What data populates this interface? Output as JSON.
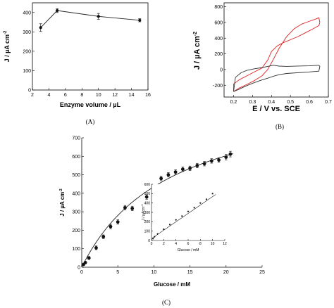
{
  "chart_data": [
    {
      "panel": "A",
      "type": "line",
      "panel_label": "(A)",
      "xlabel": "Enzyme volume / µL",
      "ylabel": "J / µA cm",
      "ylabel_sup": "-2",
      "xlim": [
        2,
        16
      ],
      "ylim": [
        0,
        450
      ],
      "xticks": [
        2,
        4,
        6,
        8,
        10,
        12,
        14,
        16
      ],
      "yticks": [
        0,
        100,
        200,
        300,
        400
      ],
      "x": [
        3,
        5,
        10,
        15
      ],
      "y": [
        322,
        410,
        380,
        360
      ],
      "err": [
        20,
        10,
        15,
        8
      ]
    },
    {
      "panel": "B",
      "type": "line",
      "panel_label": "(B)",
      "xlabel": "E / V vs. SCE",
      "ylabel": "J / µA cm",
      "ylabel_sup": "-2",
      "xlim": [
        0.15,
        0.7
      ],
      "ylim": [
        -350,
        850
      ],
      "xticks": [
        0.2,
        0.3,
        0.4,
        0.5,
        0.6,
        0.7
      ],
      "yticks": [
        -200,
        0,
        200,
        400,
        600,
        800
      ],
      "series": [
        {
          "color": "#e02020",
          "x": [
            0.2,
            0.23,
            0.27,
            0.31,
            0.35,
            0.38,
            0.41,
            0.44,
            0.48,
            0.52,
            0.56,
            0.6,
            0.63,
            0.65,
            0.655,
            0.65,
            0.62,
            0.58,
            0.54,
            0.5,
            0.46,
            0.43,
            0.4,
            0.38,
            0.35,
            0.31,
            0.27,
            0.23,
            0.2,
            0.2
          ],
          "y": [
            -280,
            -235,
            -190,
            -140,
            -80,
            0,
            130,
            270,
            420,
            520,
            580,
            615,
            640,
            660,
            600,
            560,
            520,
            470,
            420,
            380,
            340,
            300,
            230,
            120,
            20,
            -30,
            -80,
            -130,
            -185,
            -280
          ]
        },
        {
          "color": "#333333",
          "x": [
            0.2,
            0.23,
            0.26,
            0.3,
            0.34,
            0.38,
            0.41,
            0.44,
            0.48,
            0.54,
            0.6,
            0.65,
            0.655,
            0.65,
            0.6,
            0.54,
            0.48,
            0.44,
            0.41,
            0.38,
            0.35,
            0.31,
            0.27,
            0.24,
            0.21,
            0.2
          ],
          "y": [
            -280,
            -250,
            -215,
            -175,
            -140,
            -110,
            -85,
            -65,
            -50,
            -40,
            -30,
            -20,
            40,
            55,
            48,
            45,
            40,
            44,
            55,
            40,
            25,
            10,
            -10,
            -40,
            -100,
            -280
          ]
        }
      ]
    },
    {
      "panel": "C",
      "type": "scatter",
      "panel_label": "(C)",
      "xlabel": "Glucose / mM",
      "ylabel": "J / µA cm",
      "ylabel_sup": "-2",
      "xlim": [
        0,
        25
      ],
      "ylim": [
        0,
        700
      ],
      "xticks": [
        0,
        5,
        10,
        15,
        20,
        25
      ],
      "yticks": [
        0,
        100,
        200,
        300,
        400,
        500,
        600,
        700
      ],
      "x": [
        0.25,
        0.5,
        1,
        2,
        3,
        4,
        5,
        6,
        7,
        9,
        10,
        11,
        12,
        13,
        14,
        15,
        16,
        17,
        18,
        19,
        20,
        20.6
      ],
      "y": [
        15,
        25,
        50,
        105,
        165,
        220,
        245,
        322,
        318,
        380,
        375,
        480,
        500,
        515,
        530,
        535,
        550,
        560,
        575,
        580,
        595,
        612
      ],
      "err": [
        5,
        6,
        8,
        10,
        10,
        12,
        12,
        12,
        12,
        12,
        12,
        12,
        12,
        12,
        12,
        12,
        12,
        12,
        12,
        12,
        15,
        15
      ],
      "inset": {
        "xlabel": "Glucose / mM",
        "ylabel": "J / µAcm",
        "ylabel_sup": "-2",
        "xlim": [
          0,
          12
        ],
        "ylim": [
          0,
          600
        ],
        "xticks": [
          0,
          2,
          4,
          6,
          8,
          10,
          12
        ],
        "yticks": [
          0,
          100,
          200,
          300,
          400,
          500,
          600
        ],
        "x": [
          0.25,
          0.5,
          1,
          2,
          3,
          4,
          5,
          6,
          7,
          8,
          9,
          10
        ],
        "y": [
          20,
          40,
          70,
          120,
          170,
          220,
          260,
          310,
          350,
          400,
          440,
          500
        ]
      }
    }
  ]
}
